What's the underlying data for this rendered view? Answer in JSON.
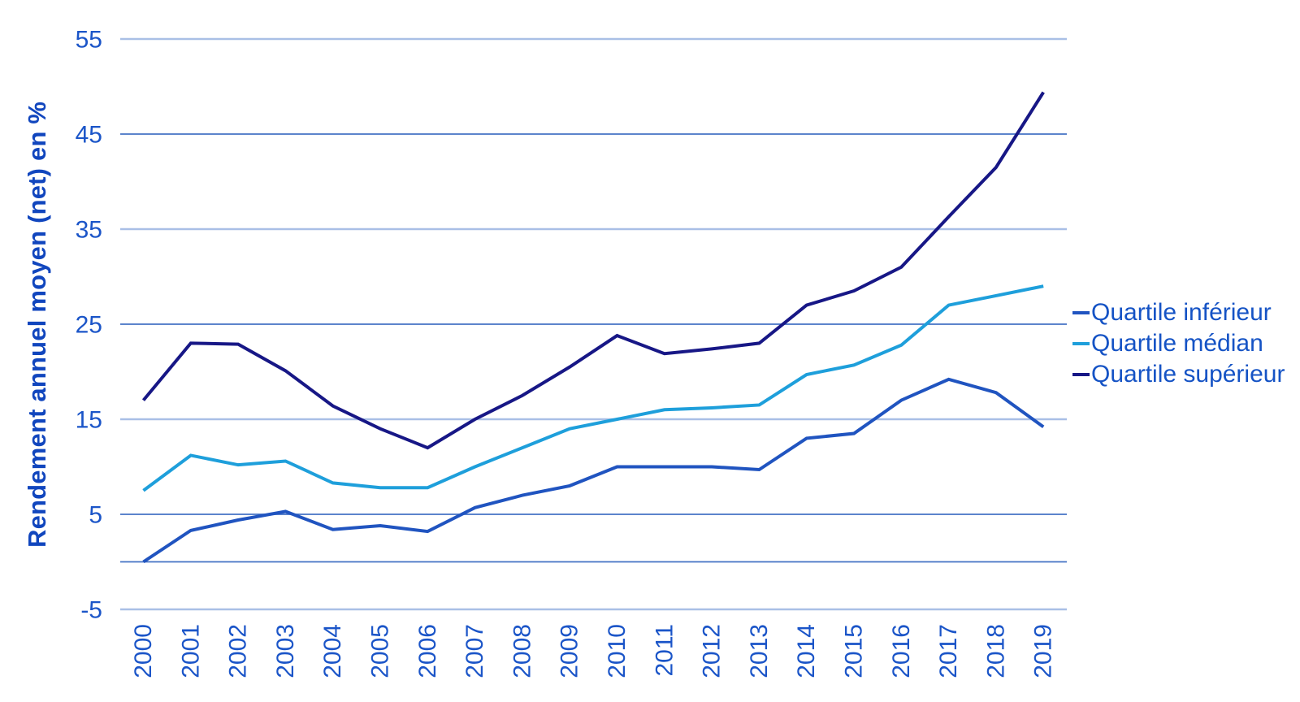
{
  "chart_data": {
    "type": "line",
    "title": "",
    "xlabel": "",
    "ylabel": "Rendement annuel moyen (net) en %",
    "x": [
      "2000",
      "2001",
      "2002",
      "2003",
      "2004",
      "2005",
      "2006",
      "2007",
      "2008",
      "2009",
      "2010",
      "2011",
      "2012",
      "2013",
      "2014",
      "2015",
      "2016",
      "2017",
      "2018",
      "2019"
    ],
    "series": [
      {
        "name": "Quartile inférieur",
        "color": "#2054C0",
        "values": [
          0,
          3.3,
          4.4,
          5.3,
          3.4,
          3.8,
          3.2,
          5.7,
          7.0,
          8.0,
          10.0,
          10.0,
          10.0,
          9.7,
          13.0,
          13.5,
          17.0,
          19.2,
          17.8,
          14.2
        ]
      },
      {
        "name": "Quartile médian",
        "color": "#1E9FDB",
        "values": [
          7.5,
          11.2,
          10.2,
          10.6,
          8.3,
          7.8,
          7.8,
          10.0,
          12.0,
          14.0,
          15.0,
          16.0,
          16.2,
          16.5,
          19.7,
          20.7,
          22.8,
          27.0,
          28.0,
          29.0
        ]
      },
      {
        "name": "Quartile supérieur",
        "color": "#171786",
        "values": [
          17.0,
          23.0,
          22.9,
          20.1,
          16.4,
          14.0,
          12.0,
          15.0,
          17.5,
          20.5,
          23.8,
          21.9,
          22.4,
          23.0,
          27.0,
          28.5,
          31.0,
          36.3,
          41.5,
          49.4
        ]
      }
    ],
    "yticks": [
      55,
      45,
      35,
      25,
      15,
      5,
      -5
    ],
    "zero_gridline": true,
    "ylim": [
      -5,
      55
    ],
    "grid": "horizontal",
    "legend_position": "right"
  },
  "colors": {
    "tick_label": "#1B55C8",
    "axis_title": "#1146BE",
    "legend_text": "#1553C5",
    "grid_dark": "#4472C4",
    "grid_light": "#A9BFE6",
    "background": "#FFFFFF"
  }
}
